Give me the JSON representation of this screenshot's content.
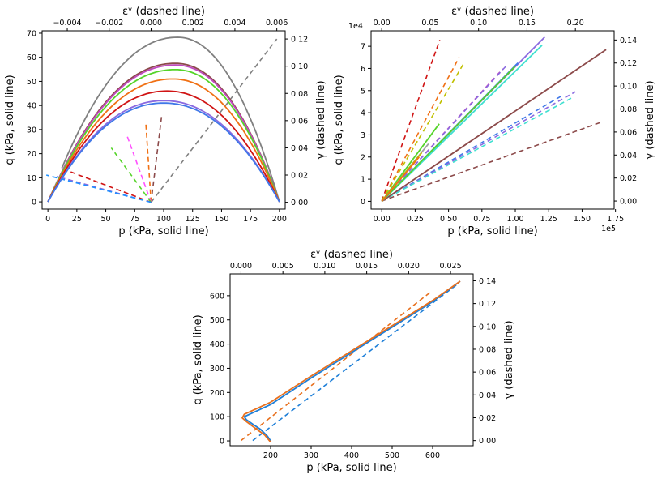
{
  "figure": {
    "panels": [
      {
        "id": "panel-1",
        "xlabel": "p (kPa, solid line)",
        "ylabel": "q (kPa, solid line)",
        "top_label": "εᵛ  (dashed line)",
        "right_label": "γ  (dashed line)",
        "bottom_ticks": [
          "0",
          "25",
          "50",
          "75",
          "100",
          "125",
          "150",
          "175",
          "200"
        ],
        "left_ticks": [
          "0",
          "10",
          "20",
          "30",
          "40",
          "50",
          "60",
          "70"
        ],
        "top_ticks": [
          "−0.004",
          "−0.002",
          "0.000",
          "0.002",
          "0.004",
          "0.006"
        ],
        "right_ticks": [
          "0.00",
          "0.02",
          "0.04",
          "0.06",
          "0.08",
          "0.10",
          "0.12"
        ],
        "bottom_scale": "",
        "left_scale": ""
      },
      {
        "id": "panel-2",
        "xlabel": "p (kPa, solid line)",
        "ylabel": "q (kPa, solid line)",
        "top_label": "εᵛ  (dashed line)",
        "right_label": "γ  (dashed line)",
        "bottom_ticks": [
          "0.00",
          "0.25",
          "0.50",
          "0.75",
          "1.00",
          "1.25",
          "1.50",
          "1.75"
        ],
        "left_ticks": [
          "0",
          "1",
          "2",
          "3",
          "4",
          "5",
          "6",
          "7"
        ],
        "top_ticks": [
          "0.00",
          "0.05",
          "0.10",
          "0.15",
          "0.20"
        ],
        "right_ticks": [
          "0.00",
          "0.02",
          "0.04",
          "0.06",
          "0.08",
          "0.10",
          "0.12",
          "0.14"
        ],
        "bottom_scale": "1e5",
        "left_scale": "1e4"
      },
      {
        "id": "panel-3",
        "xlabel": "p (kPa, solid line)",
        "ylabel": "q (kPa, solid line)",
        "top_label": "εᵛ  (dashed line)",
        "right_label": "γ  (dashed line)",
        "bottom_ticks": [
          "200",
          "300",
          "400",
          "500",
          "600"
        ],
        "left_ticks": [
          "0",
          "100",
          "200",
          "300",
          "400",
          "500",
          "600"
        ],
        "top_ticks": [
          "0.000",
          "0.005",
          "0.010",
          "0.015",
          "0.020",
          "0.025"
        ],
        "right_ticks": [
          "0.00",
          "0.02",
          "0.04",
          "0.06",
          "0.08",
          "0.10",
          "0.12",
          "0.14"
        ],
        "bottom_scale": "",
        "left_scale": ""
      }
    ]
  },
  "chart_data": [
    {
      "type": "line",
      "title": "",
      "xlabel": "p (kPa, solid line)",
      "ylabel": "q (kPa, solid line)",
      "x2label": "εᵛ (dashed line)",
      "y2label": "γ (dashed line)",
      "xlim": [
        -5,
        205
      ],
      "ylim": [
        -3,
        71
      ],
      "x2lim": [
        -0.0052,
        0.0064
      ],
      "y2lim": [
        -0.005,
        0.126
      ],
      "xticks": [
        0,
        25,
        50,
        75,
        100,
        125,
        150,
        175,
        200
      ],
      "yticks": [
        0,
        10,
        20,
        30,
        40,
        50,
        60,
        70
      ],
      "x2ticks": [
        -0.004,
        -0.002,
        0.0,
        0.002,
        0.004,
        0.006
      ],
      "y2ticks": [
        0.0,
        0.02,
        0.04,
        0.06,
        0.08,
        0.1,
        0.12
      ],
      "grid": false,
      "legend": "none",
      "solid_series": [
        {
          "color": "#808080",
          "peak_p": 112,
          "peak_q": 68.3,
          "start": [
            12,
            14
          ],
          "end": [
            200,
            0
          ]
        },
        {
          "color": "#8c4a4a",
          "peak_p": 110,
          "peak_q": 57.5,
          "start": [
            0,
            0
          ],
          "end": [
            200,
            0
          ]
        },
        {
          "color": "#c04ac0",
          "peak_p": 110,
          "peak_q": 56.8,
          "start": [
            0,
            0
          ],
          "end": [
            200,
            0
          ]
        },
        {
          "color": "#55d42a",
          "peak_p": 110,
          "peak_q": 54.9,
          "start": [
            0,
            0
          ],
          "end": [
            200,
            0
          ]
        },
        {
          "color": "#f07014",
          "peak_p": 108,
          "peak_q": 51.0,
          "start": [
            0,
            0
          ],
          "end": [
            200,
            0
          ]
        },
        {
          "color": "#d01414",
          "peak_p": 103,
          "peak_q": 46.0,
          "start": [
            0,
            0
          ],
          "end": [
            200,
            0
          ]
        },
        {
          "color": "#8a6ae0",
          "peak_p": 100,
          "peak_q": 42.0,
          "start": [
            0,
            0
          ],
          "end": [
            200,
            0
          ]
        },
        {
          "color": "#4078e8",
          "peak_p": 100,
          "peak_q": 41.0,
          "start": [
            0,
            0
          ],
          "end": [
            200,
            0
          ]
        }
      ],
      "dashed_series": [
        {
          "color": "#808080",
          "ev": [
            0.0,
            0.006
          ],
          "gamma": [
            0.0,
            0.12
          ]
        },
        {
          "color": "#8c4a4a",
          "ev": [
            0.0,
            0.0005
          ],
          "gamma": [
            0.0,
            0.063
          ]
        },
        {
          "color": "#f07014",
          "ev": [
            0.0,
            -0.00025
          ],
          "gamma": [
            0.0,
            0.058
          ]
        },
        {
          "color": "#ff50ff",
          "ev": [
            0.0,
            -0.00115
          ],
          "gamma": [
            0.0,
            0.049
          ]
        },
        {
          "color": "#55d42a",
          "ev": [
            0.0,
            -0.0019
          ],
          "gamma": [
            0.0,
            0.04
          ]
        },
        {
          "color": "#d01414",
          "ev": [
            0.0,
            -0.0043
          ],
          "gamma": [
            0.0,
            0.025
          ]
        },
        {
          "color": "#8a6ae0",
          "ev": [
            0.0,
            -0.0045
          ],
          "gamma": [
            0.0,
            0.019
          ]
        },
        {
          "color": "#1e90ff",
          "ev": [
            0.0,
            -0.005
          ],
          "gamma": [
            0.0,
            0.02
          ]
        }
      ]
    },
    {
      "type": "line",
      "title": "",
      "xlabel": "p (kPa, solid line)",
      "ylabel": "q (kPa, solid line)",
      "x2label": "εᵛ (dashed line)",
      "y2label": "γ (dashed line)",
      "x_scale": "1e5",
      "y_scale": "1e4",
      "xlim": [
        -0.08,
        1.74
      ],
      "ylim": [
        -0.35,
        7.7
      ],
      "x2lim": [
        -0.011,
        0.24
      ],
      "y2lim": [
        -0.007,
        0.148
      ],
      "xticks": [
        0.0,
        0.25,
        0.5,
        0.75,
        1.0,
        1.25,
        1.5,
        1.75
      ],
      "yticks": [
        0,
        1,
        2,
        3,
        4,
        5,
        6,
        7
      ],
      "x2ticks": [
        0.0,
        0.05,
        0.1,
        0.15,
        0.2
      ],
      "y2ticks": [
        0.0,
        0.02,
        0.04,
        0.06,
        0.08,
        0.1,
        0.12,
        0.14
      ],
      "grid": false,
      "legend": "none",
      "solid_series": [
        {
          "color": "#8c4a4a",
          "p": [
            0.0,
            1.68
          ],
          "q": [
            0.0,
            6.85
          ]
        },
        {
          "color": "#8a6ae0",
          "p": [
            0.0,
            1.22
          ],
          "q": [
            0.0,
            7.42
          ]
        },
        {
          "color": "#40e0d0",
          "p": [
            0.0,
            1.2
          ],
          "q": [
            0.0,
            7.05
          ]
        },
        {
          "color": "#4078e8",
          "p": [
            0.0,
            1.02
          ],
          "q": [
            0.0,
            6.25
          ]
        },
        {
          "color": "#55d42a",
          "p": [
            0.0,
            1.0
          ],
          "q": [
            0.0,
            6.1
          ]
        },
        {
          "color": "#55d42a",
          "p": [
            0.0,
            0.43
          ],
          "q": [
            0.0,
            3.5
          ]
        },
        {
          "color": "#a0a0a0",
          "p": [
            0.0,
            0.35
          ],
          "q": [
            0.0,
            2.6
          ]
        },
        {
          "color": "#c0c000",
          "p": [
            0.0,
            0.3
          ],
          "q": [
            0.0,
            2.2
          ]
        },
        {
          "color": "#f07014",
          "p": [
            0.0,
            0.28
          ],
          "q": [
            0.0,
            2.0
          ]
        }
      ],
      "dashed_series": [
        {
          "color": "#d01414",
          "ev": [
            0.0,
            0.06
          ],
          "gamma": [
            0.0,
            0.14
          ]
        },
        {
          "color": "#f07014",
          "ev": [
            0.0,
            0.08
          ],
          "gamma": [
            0.0,
            0.125
          ]
        },
        {
          "color": "#c0c000",
          "ev": [
            0.0,
            0.085
          ],
          "gamma": [
            0.0,
            0.12
          ]
        },
        {
          "color": "#c04ac0",
          "ev": [
            0.0,
            0.125
          ],
          "gamma": [
            0.0,
            0.115
          ]
        },
        {
          "color": "#8a6ae0",
          "ev": [
            0.0,
            0.128
          ],
          "gamma": [
            0.0,
            0.117
          ]
        },
        {
          "color": "#4078e8",
          "ev": [
            0.0,
            0.187
          ],
          "gamma": [
            0.0,
            0.092
          ]
        },
        {
          "color": "#8a6ae0",
          "ev": [
            0.0,
            0.2
          ],
          "gamma": [
            0.0,
            0.095
          ]
        },
        {
          "color": "#40e0d0",
          "ev": [
            0.0,
            0.197
          ],
          "gamma": [
            0.0,
            0.09
          ]
        },
        {
          "color": "#8c4a4a",
          "ev": [
            0.0,
            0.228
          ],
          "gamma": [
            0.0,
            0.069
          ]
        }
      ]
    },
    {
      "type": "line",
      "title": "",
      "xlabel": "p (kPa, solid line)",
      "ylabel": "q (kPa, solid line)",
      "x2label": "εᵛ (dashed line)",
      "y2label": "γ (dashed line)",
      "xlim": [
        100,
        700
      ],
      "ylim": [
        -20,
        690
      ],
      "x2lim": [
        -0.0013,
        0.0277
      ],
      "y2lim": [
        -0.0045,
        0.146
      ],
      "xticks": [
        200,
        300,
        400,
        500,
        600
      ],
      "yticks": [
        0,
        100,
        200,
        300,
        400,
        500,
        600
      ],
      "x2ticks": [
        0.0,
        0.005,
        0.01,
        0.015,
        0.02,
        0.025
      ],
      "y2ticks": [
        0.0,
        0.02,
        0.04,
        0.06,
        0.08,
        0.1,
        0.12,
        0.14
      ],
      "grid": false,
      "legend": "none",
      "solid_series": [
        {
          "color": "#1e7fd8",
          "p": [
            200,
            192,
            175,
            155,
            140,
            135,
            200,
            300,
            400,
            500,
            600,
            668
          ],
          "q": [
            0,
            20,
            48,
            70,
            88,
            100,
            150,
            260,
            365,
            470,
            575,
            660
          ]
        },
        {
          "color": "#e8701e",
          "p": [
            200,
            185,
            160,
            140,
            130,
            135,
            200,
            300,
            400,
            500,
            600,
            668
          ],
          "q": [
            -5,
            25,
            55,
            80,
            95,
            110,
            160,
            268,
            372,
            476,
            580,
            660
          ]
        }
      ],
      "dashed_series": [
        {
          "color": "#1e7fd8",
          "ev": [
            0.0014,
            0.026
          ],
          "gamma": [
            0.0,
            0.138
          ]
        },
        {
          "color": "#e8701e",
          "ev": [
            0.0,
            0.0226
          ],
          "gamma": [
            0.0,
            0.13
          ]
        }
      ]
    }
  ]
}
